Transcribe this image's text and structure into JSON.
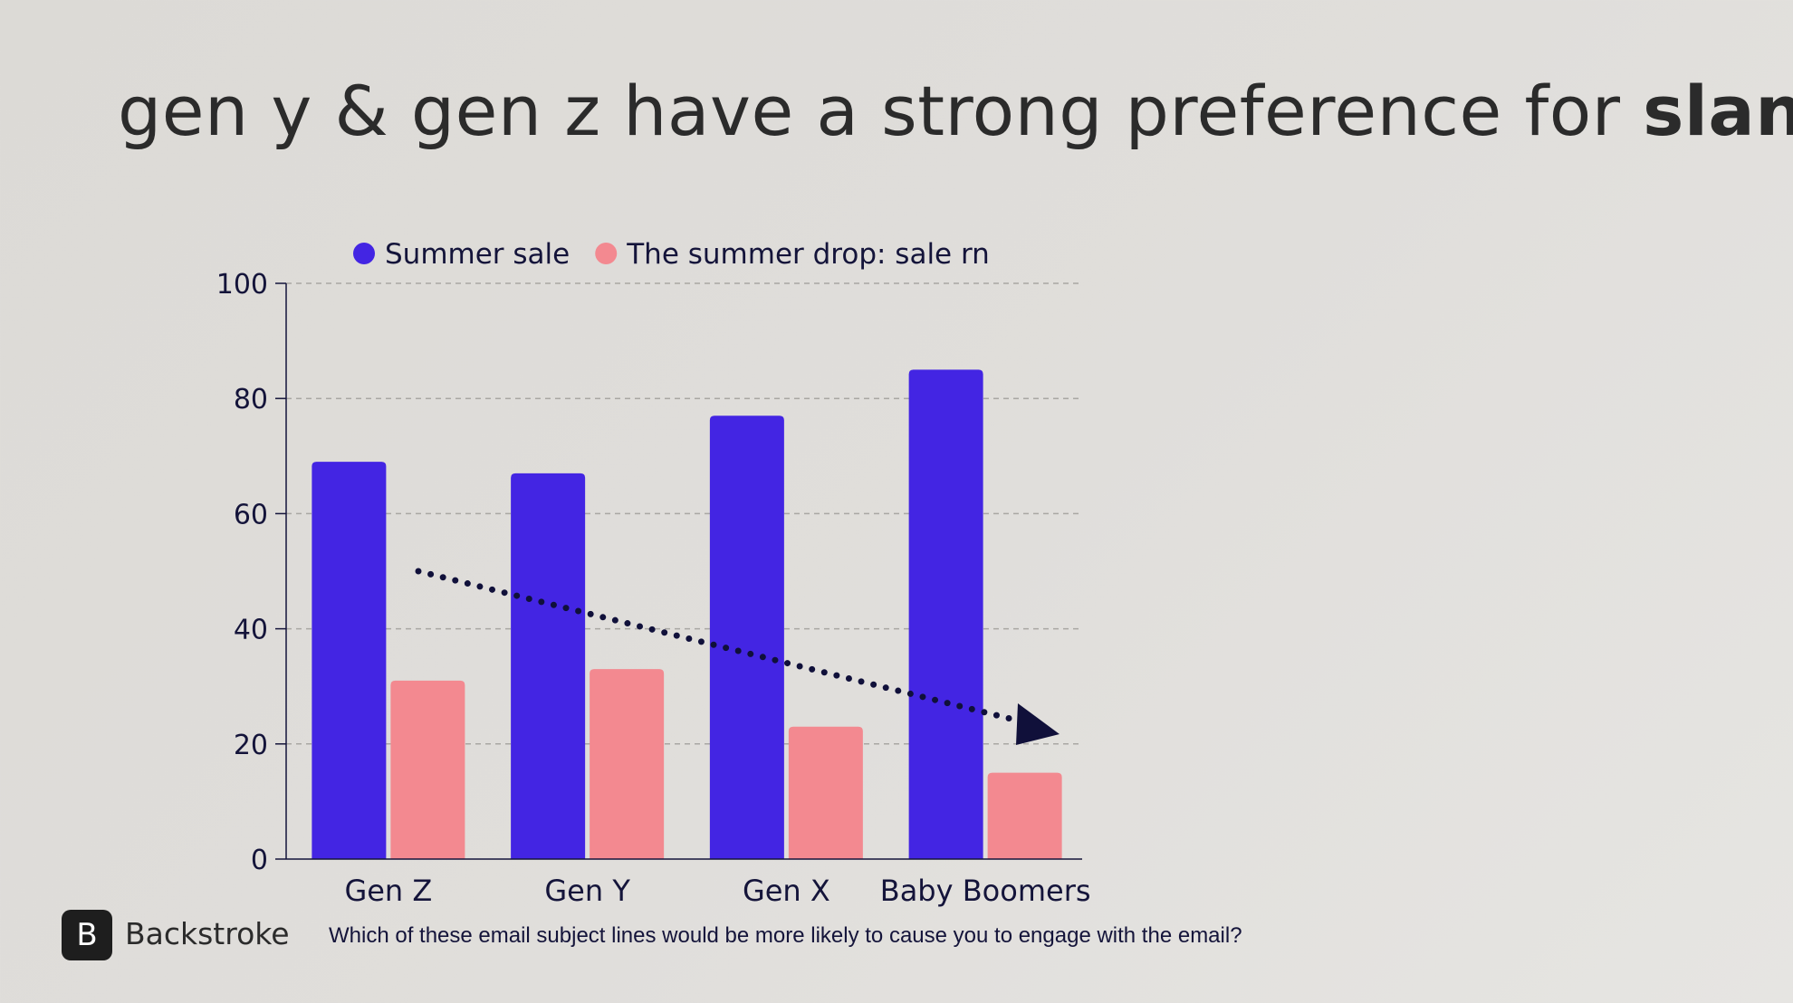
{
  "headline": {
    "text": "gen y & gen z have a strong preference for ",
    "emphasis": "slang",
    "end": "."
  },
  "chart_data": {
    "type": "bar",
    "categories": [
      "Gen Z",
      "Gen Y",
      "Gen X",
      "Baby Boomers"
    ],
    "series": [
      {
        "name": "Summer sale",
        "color": "#4325e3",
        "values": [
          69,
          67,
          77,
          85
        ]
      },
      {
        "name": "The summer drop: sale rn",
        "color": "#f38990",
        "values": [
          31,
          33,
          23,
          15
        ]
      }
    ],
    "ylim": [
      0,
      100
    ],
    "yticks": [
      "0",
      "20",
      "40",
      "60",
      "80",
      "100"
    ],
    "grid": true,
    "legend": "top",
    "annotation": "dotted trend arrow pointing down to the right"
  },
  "footer": {
    "brand": "Backstroke",
    "logo_glyph": "B",
    "question": "Which of these email subject lines would be more likely to cause you to engage with the email?"
  },
  "colors": {
    "text": "#2b2b2b",
    "axis_text": "#14143a",
    "arrow": "#10103a",
    "background": "#dedcd8"
  }
}
